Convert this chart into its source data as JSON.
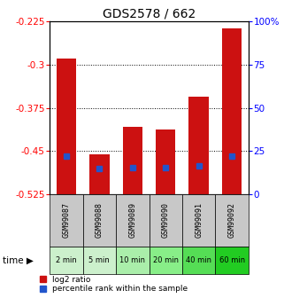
{
  "title": "GDS2578 / 662",
  "samples": [
    "GSM99087",
    "GSM99088",
    "GSM99089",
    "GSM99090",
    "GSM99091",
    "GSM99092"
  ],
  "time_labels": [
    "2 min",
    "5 min",
    "10 min",
    "20 min",
    "40 min",
    "60 min"
  ],
  "bar_top": [
    -0.29,
    -0.455,
    -0.408,
    -0.412,
    -0.355,
    -0.237
  ],
  "bar_bottom": -0.525,
  "percentile_rank": [
    22.0,
    15.0,
    15.5,
    15.5,
    16.5,
    22.0
  ],
  "ylim_left": [
    -0.525,
    -0.225
  ],
  "ylim_right": [
    0,
    100
  ],
  "yticks_left": [
    -0.525,
    -0.45,
    -0.375,
    -0.3,
    -0.225
  ],
  "yticks_right": [
    0,
    25,
    50,
    75,
    100
  ],
  "ytick_labels_left": [
    "-0.525",
    "-0.45",
    "-0.375",
    "-0.3",
    "-0.225"
  ],
  "ytick_labels_right": [
    "0",
    "25",
    "50",
    "75",
    "100%"
  ],
  "bar_color": "#cc1111",
  "blue_color": "#2255cc",
  "title_fontsize": 10,
  "bar_width": 0.6,
  "bg_color_gsm": "#c8c8c8",
  "time_bg_colors": [
    "#ccf0cc",
    "#ccf0cc",
    "#aaeeaa",
    "#88ee88",
    "#55dd55",
    "#22cc22"
  ],
  "legend1": "log2 ratio",
  "legend2": "percentile rank within the sample"
}
